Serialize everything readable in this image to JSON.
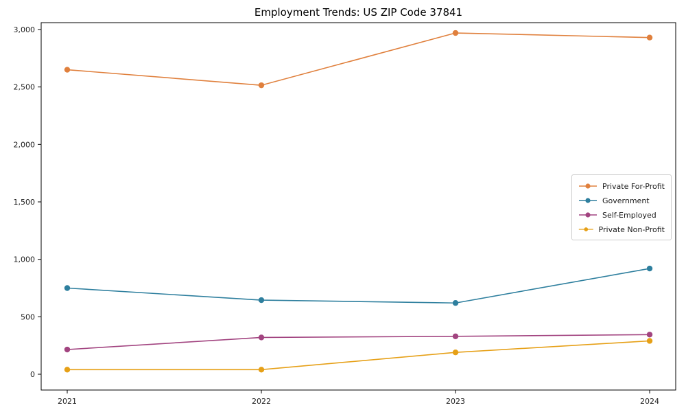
{
  "chart": {
    "title": "Employment Trends: US ZIP Code 37841"
  },
  "chart_data": {
    "type": "line",
    "title": "Employment Trends: US ZIP Code 37841",
    "xlabel": "",
    "ylabel": "",
    "categories": [
      "2021",
      "2022",
      "2023",
      "2024"
    ],
    "x": [
      2021,
      2022,
      2023,
      2024
    ],
    "series": [
      {
        "name": "Private For-Profit",
        "color": "#e0803d",
        "values": [
          2650,
          2515,
          2970,
          2930
        ]
      },
      {
        "name": "Government",
        "color": "#2e7f9e",
        "values": [
          750,
          645,
          620,
          920
        ]
      },
      {
        "name": "Self-Employed",
        "color": "#a24480",
        "values": [
          215,
          320,
          330,
          345
        ]
      },
      {
        "name": "Private Non-Profit",
        "color": "#e6a017",
        "values": [
          40,
          40,
          190,
          290
        ]
      }
    ],
    "ylim": [
      0,
      3000
    ],
    "yticks": [
      0,
      500,
      1000,
      1500,
      2000,
      2500,
      3000
    ],
    "ytick_labels": [
      "0",
      "500",
      "1,000",
      "1,500",
      "2,000",
      "2,500",
      "3,000"
    ],
    "grid": false,
    "legend_position": "center-right",
    "marker": "circle",
    "spine_color": "#000000"
  }
}
